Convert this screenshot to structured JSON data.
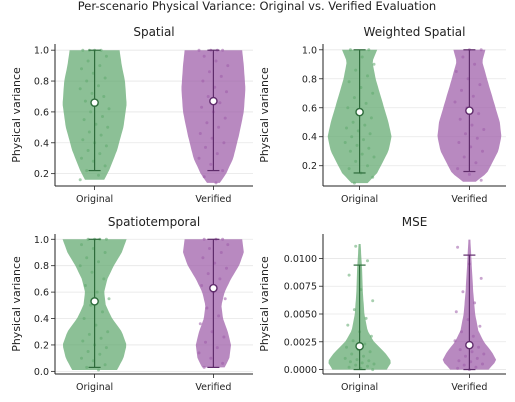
{
  "title": "Per-scenario Physical Variance: Original vs. Verified Evaluation",
  "colors": {
    "original": "#5fa86e",
    "verified": "#9c5ba8",
    "grid": "#e6e6e6",
    "axis": "#222222"
  },
  "chart_data": [
    {
      "type": "violin",
      "title": "Spatial",
      "ylabel": "Physical variance",
      "categories": [
        "Original",
        "Verified"
      ],
      "ylim": [
        0.12,
        1.04
      ],
      "yticks": [
        0.2,
        0.4,
        0.6,
        0.8,
        1.0
      ],
      "yticklabels": [
        "0.2",
        "0.4",
        "0.6",
        "0.8",
        "1.0"
      ],
      "grid": true,
      "series": [
        {
          "whisker": [
            0.22,
            1.0
          ],
          "median": 0.66,
          "extent": [
            0.16,
            1.0
          ],
          "profile": [
            [
              0.16,
              0.3
            ],
            [
              0.22,
              0.45
            ],
            [
              0.35,
              0.7
            ],
            [
              0.5,
              0.9
            ],
            [
              0.65,
              1.0
            ],
            [
              0.8,
              0.95
            ],
            [
              0.9,
              0.85
            ],
            [
              1.0,
              0.78
            ]
          ],
          "points": [
            0.16,
            0.19,
            0.22,
            0.25,
            0.28,
            0.3,
            0.33,
            0.35,
            0.38,
            0.4,
            0.42,
            0.45,
            0.47,
            0.5,
            0.52,
            0.55,
            0.57,
            0.6,
            0.62,
            0.65,
            0.67,
            0.7,
            0.72,
            0.75,
            0.77,
            0.8,
            0.82,
            0.85,
            0.88,
            0.9,
            0.93,
            0.96,
            1.0,
            1.0,
            1.0,
            1.0
          ]
        },
        {
          "whisker": [
            0.22,
            1.0
          ],
          "median": 0.67,
          "extent": [
            0.14,
            1.0
          ],
          "profile": [
            [
              0.14,
              0.2
            ],
            [
              0.2,
              0.4
            ],
            [
              0.3,
              0.62
            ],
            [
              0.45,
              0.8
            ],
            [
              0.6,
              0.95
            ],
            [
              0.75,
              1.0
            ],
            [
              0.9,
              0.95
            ],
            [
              1.0,
              0.9
            ]
          ],
          "points": [
            0.14,
            0.18,
            0.22,
            0.26,
            0.3,
            0.33,
            0.37,
            0.4,
            0.43,
            0.46,
            0.5,
            0.53,
            0.56,
            0.6,
            0.63,
            0.66,
            0.7,
            0.73,
            0.76,
            0.8,
            0.83,
            0.86,
            0.9,
            0.93,
            0.96,
            1.0,
            1.0,
            1.0,
            1.0
          ]
        }
      ]
    },
    {
      "type": "violin",
      "title": "Weighted Spatial",
      "ylabel": "Physical variance",
      "categories": [
        "Original",
        "Verified"
      ],
      "ylim": [
        0.06,
        1.04
      ],
      "yticks": [
        0.2,
        0.4,
        0.6,
        0.8,
        1.0
      ],
      "yticklabels": [
        "0.2",
        "0.4",
        "0.6",
        "0.8",
        "1.0"
      ],
      "grid": true,
      "series": [
        {
          "whisker": [
            0.15,
            1.0
          ],
          "median": 0.57,
          "extent": [
            0.08,
            1.0
          ],
          "profile": [
            [
              0.08,
              0.25
            ],
            [
              0.15,
              0.55
            ],
            [
              0.3,
              0.9
            ],
            [
              0.4,
              1.0
            ],
            [
              0.5,
              0.9
            ],
            [
              0.65,
              0.7
            ],
            [
              0.8,
              0.5
            ],
            [
              0.92,
              0.4
            ],
            [
              1.0,
              0.55
            ]
          ],
          "points": [
            0.08,
            0.12,
            0.15,
            0.18,
            0.2,
            0.23,
            0.26,
            0.28,
            0.3,
            0.32,
            0.34,
            0.36,
            0.38,
            0.4,
            0.42,
            0.44,
            0.46,
            0.48,
            0.5,
            0.53,
            0.56,
            0.6,
            0.63,
            0.67,
            0.7,
            0.74,
            0.78,
            0.82,
            0.86,
            0.9,
            0.95,
            1.0,
            1.0
          ]
        },
        {
          "whisker": [
            0.16,
            1.0
          ],
          "median": 0.58,
          "extent": [
            0.09,
            1.0
          ],
          "profile": [
            [
              0.09,
              0.2
            ],
            [
              0.15,
              0.55
            ],
            [
              0.3,
              0.9
            ],
            [
              0.4,
              1.0
            ],
            [
              0.5,
              0.95
            ],
            [
              0.65,
              0.75
            ],
            [
              0.8,
              0.55
            ],
            [
              0.92,
              0.4
            ],
            [
              1.0,
              0.5
            ]
          ],
          "points": [
            0.1,
            0.14,
            0.18,
            0.22,
            0.26,
            0.3,
            0.33,
            0.36,
            0.39,
            0.42,
            0.45,
            0.48,
            0.52,
            0.56,
            0.6,
            0.64,
            0.68,
            0.72,
            0.76,
            0.8,
            0.85,
            0.9,
            0.95,
            1.0,
            1.0
          ]
        }
      ]
    },
    {
      "type": "violin",
      "title": "Spatiotemporal",
      "ylabel": "Physical variance",
      "categories": [
        "Original",
        "Verified"
      ],
      "ylim": [
        -0.02,
        1.04
      ],
      "yticks": [
        0.0,
        0.2,
        0.4,
        0.6,
        0.8,
        1.0
      ],
      "yticklabels": [
        "0.0",
        "0.2",
        "0.4",
        "0.6",
        "0.8",
        "1.0"
      ],
      "grid": true,
      "series": [
        {
          "whisker": [
            0.03,
            1.0
          ],
          "median": 0.53,
          "extent": [
            0.01,
            1.0
          ],
          "profile": [
            [
              0.01,
              0.7
            ],
            [
              0.1,
              0.9
            ],
            [
              0.2,
              1.0
            ],
            [
              0.3,
              0.85
            ],
            [
              0.4,
              0.55
            ],
            [
              0.5,
              0.35
            ],
            [
              0.6,
              0.3
            ],
            [
              0.7,
              0.4
            ],
            [
              0.8,
              0.6
            ],
            [
              0.9,
              0.85
            ],
            [
              1.0,
              1.0
            ]
          ],
          "points": [
            0.01,
            0.03,
            0.05,
            0.08,
            0.1,
            0.13,
            0.15,
            0.18,
            0.2,
            0.23,
            0.25,
            0.28,
            0.3,
            0.35,
            0.4,
            0.45,
            0.5,
            0.55,
            0.6,
            0.65,
            0.7,
            0.75,
            0.8,
            0.83,
            0.86,
            0.9,
            0.93,
            0.96,
            1.0,
            1.0,
            1.0,
            1.0
          ]
        },
        {
          "whisker": [
            0.03,
            1.0
          ],
          "median": 0.63,
          "extent": [
            0.03,
            1.0
          ],
          "profile": [
            [
              0.03,
              0.35
            ],
            [
              0.1,
              0.5
            ],
            [
              0.2,
              0.55
            ],
            [
              0.3,
              0.45
            ],
            [
              0.4,
              0.3
            ],
            [
              0.5,
              0.25
            ],
            [
              0.6,
              0.35
            ],
            [
              0.7,
              0.55
            ],
            [
              0.8,
              0.8
            ],
            [
              0.9,
              0.95
            ],
            [
              1.0,
              0.9
            ]
          ],
          "points": [
            0.03,
            0.06,
            0.1,
            0.14,
            0.18,
            0.22,
            0.26,
            0.3,
            0.36,
            0.42,
            0.48,
            0.55,
            0.6,
            0.65,
            0.7,
            0.74,
            0.78,
            0.82,
            0.86,
            0.9,
            0.93,
            0.96,
            1.0,
            1.0,
            1.0
          ]
        }
      ]
    },
    {
      "type": "violin",
      "title": "MSE",
      "ylabel": "Physical variance",
      "categories": [
        "Original",
        "Verified"
      ],
      "ylim": [
        -0.0004,
        0.0122
      ],
      "yticks": [
        0.0,
        0.0025,
        0.005,
        0.0075,
        0.01
      ],
      "yticklabels": [
        "0.0000",
        "0.0025",
        "0.0050",
        "0.0075",
        "0.0100"
      ],
      "grid": true,
      "series": [
        {
          "whisker": [
            0.0,
            0.0094
          ],
          "median": 0.0021,
          "extent": [
            0.0,
            0.0113
          ],
          "profile": [
            [
              0.0,
              0.85
            ],
            [
              0.0007,
              1.0
            ],
            [
              0.0015,
              0.8
            ],
            [
              0.0025,
              0.45
            ],
            [
              0.0035,
              0.25
            ],
            [
              0.005,
              0.15
            ],
            [
              0.007,
              0.1
            ],
            [
              0.009,
              0.08
            ],
            [
              0.0113,
              0.03
            ]
          ],
          "points": [
            0.0,
            0.0001,
            0.0002,
            0.0003,
            0.0004,
            0.0005,
            0.0006,
            0.0007,
            0.0008,
            0.0009,
            0.001,
            0.0012,
            0.0014,
            0.0016,
            0.0018,
            0.002,
            0.0023,
            0.0026,
            0.003,
            0.0034,
            0.004,
            0.0046,
            0.0054,
            0.0062,
            0.0072,
            0.0085,
            0.0098,
            0.0111
          ]
        },
        {
          "whisker": [
            0.0,
            0.0103
          ],
          "median": 0.0022,
          "extent": [
            0.0,
            0.0117
          ],
          "profile": [
            [
              0.0,
              0.6
            ],
            [
              0.0008,
              0.85
            ],
            [
              0.0016,
              0.7
            ],
            [
              0.0025,
              0.45
            ],
            [
              0.0035,
              0.28
            ],
            [
              0.005,
              0.18
            ],
            [
              0.007,
              0.12
            ],
            [
              0.009,
              0.08
            ],
            [
              0.0117,
              0.03
            ]
          ],
          "points": [
            0.0,
            0.0001,
            0.0002,
            0.0004,
            0.0005,
            0.0007,
            0.0008,
            0.001,
            0.0012,
            0.0014,
            0.0016,
            0.0018,
            0.002,
            0.0023,
            0.0026,
            0.003,
            0.0034,
            0.0039,
            0.0045,
            0.0052,
            0.006,
            0.007,
            0.0082,
            0.0095,
            0.011
          ]
        }
      ]
    }
  ]
}
